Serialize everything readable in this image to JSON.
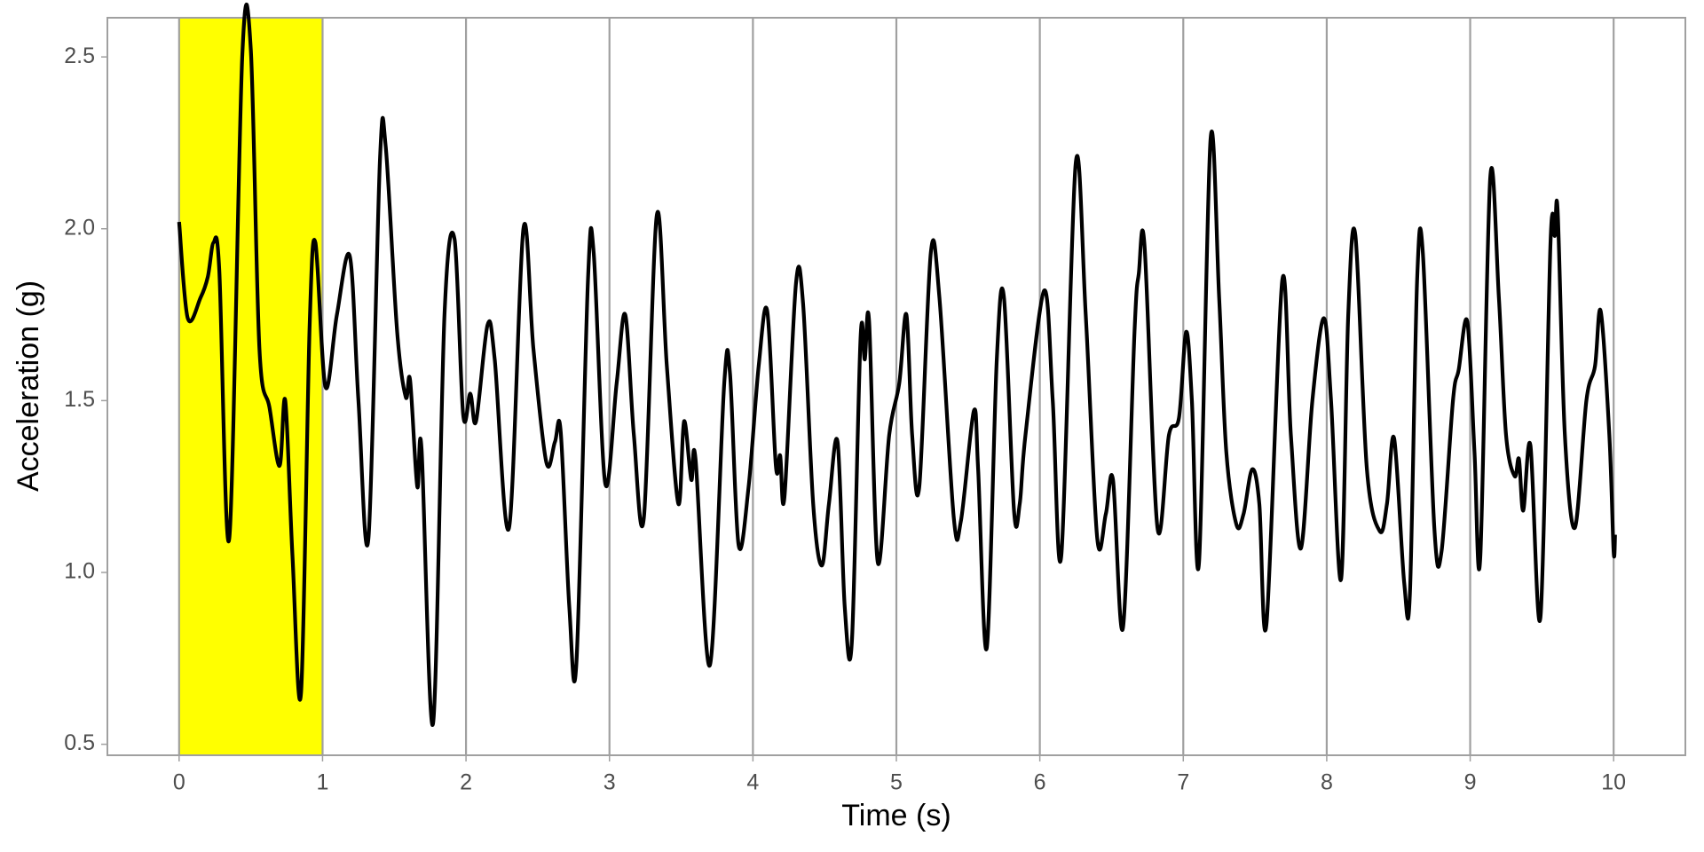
{
  "chart_data": {
    "type": "line",
    "x_label": "Time (s)",
    "y_label": "Acceleration (g)",
    "xlim": [
      -0.5,
      10.5
    ],
    "ylim": [
      0.468,
      2.614
    ],
    "xticks": [
      0,
      1,
      2,
      3,
      4,
      5,
      6,
      7,
      8,
      9,
      10
    ],
    "yticks": [
      {
        "value": 0.5,
        "label": "0.5"
      },
      {
        "value": 1,
        "label": "1.0"
      },
      {
        "value": 1.5,
        "label": "1.5"
      },
      {
        "value": 2,
        "label": "2.0"
      },
      {
        "value": 2.5,
        "label": "2.5"
      }
    ],
    "grid": "x-major",
    "highlight": {
      "x": [
        0,
        1
      ],
      "color": "#ffff00"
    },
    "series": [
      {
        "color": "#000000",
        "x": [
          0.0,
          0.06,
          0.15,
          0.2,
          0.24,
          0.28,
          0.35,
          0.44,
          0.5,
          0.56,
          0.63,
          0.7,
          0.74,
          0.79,
          0.85,
          0.91,
          0.95,
          1.02,
          1.1,
          1.19,
          1.25,
          1.32,
          1.4,
          1.44,
          1.52,
          1.58,
          1.61,
          1.66,
          1.69,
          1.77,
          1.85,
          1.92,
          1.98,
          2.03,
          2.07,
          2.15,
          2.2,
          2.3,
          2.4,
          2.47,
          2.56,
          2.62,
          2.66,
          2.72,
          2.77,
          2.85,
          2.89,
          2.97,
          3.05,
          3.11,
          3.17,
          3.24,
          3.33,
          3.4,
          3.48,
          3.52,
          3.57,
          3.6,
          3.7,
          3.8,
          3.84,
          3.9,
          3.97,
          4.04,
          4.1,
          4.16,
          4.19,
          4.22,
          4.3,
          4.35,
          4.42,
          4.48,
          4.53,
          4.59,
          4.64,
          4.69,
          4.75,
          4.78,
          4.81,
          4.87,
          4.95,
          5.02,
          5.07,
          5.11,
          5.16,
          5.24,
          5.3,
          5.4,
          5.45,
          5.54,
          5.57,
          5.63,
          5.7,
          5.75,
          5.82,
          5.86,
          5.9,
          6.03,
          6.09,
          6.15,
          6.25,
          6.32,
          6.4,
          6.46,
          6.51,
          6.58,
          6.66,
          6.69,
          6.73,
          6.82,
          6.9,
          6.97,
          7.02,
          7.06,
          7.11,
          7.19,
          7.25,
          7.3,
          7.37,
          7.42,
          7.48,
          7.53,
          7.58,
          7.69,
          7.75,
          7.82,
          7.9,
          7.98,
          8.03,
          8.1,
          8.15,
          8.2,
          8.28,
          8.37,
          8.42,
          8.47,
          8.54,
          8.58,
          8.63,
          8.67,
          8.75,
          8.8,
          8.88,
          8.92,
          8.98,
          9.03,
          9.07,
          9.14,
          9.2,
          9.25,
          9.31,
          9.34,
          9.37,
          9.42,
          9.49,
          9.56,
          9.59,
          9.61,
          9.66,
          9.73,
          9.81,
          9.87,
          9.91,
          9.97,
          10.0,
          10.01
        ],
        "values": [
          2.02,
          1.74,
          1.8,
          1.86,
          1.96,
          1.88,
          1.1,
          2.5,
          2.52,
          1.65,
          1.48,
          1.31,
          1.5,
          1.05,
          0.65,
          1.72,
          1.96,
          1.54,
          1.75,
          1.92,
          1.5,
          1.1,
          2.2,
          2.24,
          1.7,
          1.51,
          1.56,
          1.25,
          1.36,
          0.56,
          1.75,
          1.97,
          1.46,
          1.52,
          1.44,
          1.72,
          1.62,
          1.13,
          2.0,
          1.65,
          1.32,
          1.38,
          1.41,
          0.9,
          0.74,
          1.85,
          1.93,
          1.26,
          1.55,
          1.75,
          1.4,
          1.16,
          2.04,
          1.6,
          1.2,
          1.44,
          1.27,
          1.33,
          0.73,
          1.55,
          1.58,
          1.08,
          1.25,
          1.6,
          1.76,
          1.31,
          1.34,
          1.22,
          1.84,
          1.78,
          1.2,
          1.02,
          1.2,
          1.38,
          0.9,
          0.8,
          1.68,
          1.62,
          1.73,
          1.03,
          1.4,
          1.55,
          1.75,
          1.4,
          1.25,
          1.93,
          1.8,
          1.16,
          1.15,
          1.47,
          1.3,
          0.78,
          1.62,
          1.8,
          1.18,
          1.2,
          1.4,
          1.82,
          1.5,
          1.05,
          2.19,
          1.75,
          1.1,
          1.17,
          1.27,
          0.84,
          1.7,
          1.87,
          1.95,
          1.13,
          1.4,
          1.45,
          1.7,
          1.5,
          1.03,
          2.26,
          1.8,
          1.35,
          1.14,
          1.17,
          1.3,
          1.2,
          0.85,
          1.85,
          1.4,
          1.07,
          1.5,
          1.74,
          1.5,
          0.98,
          1.75,
          1.98,
          1.3,
          1.12,
          1.2,
          1.39,
          0.97,
          0.94,
          1.85,
          1.93,
          1.13,
          1.06,
          1.5,
          1.59,
          1.73,
          1.35,
          1.04,
          2.15,
          1.8,
          1.4,
          1.28,
          1.33,
          1.18,
          1.37,
          0.87,
          1.96,
          1.98,
          2.05,
          1.4,
          1.13,
          1.5,
          1.6,
          1.76,
          1.4,
          1.06,
          1.11
        ]
      }
    ]
  }
}
